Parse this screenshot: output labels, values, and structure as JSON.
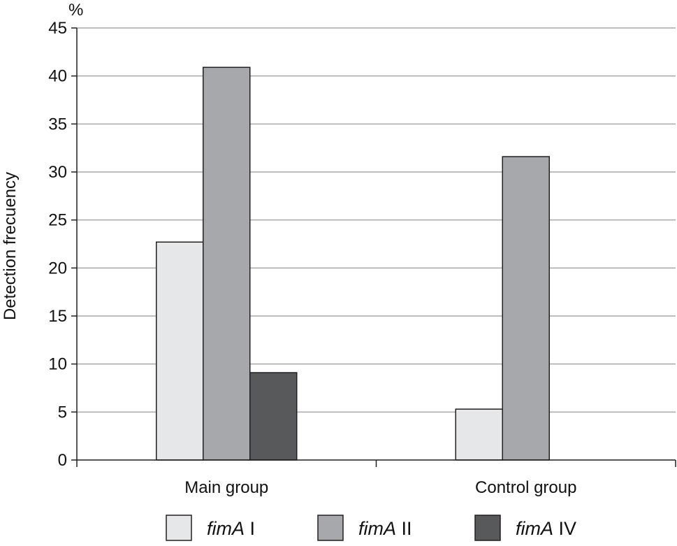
{
  "chart_data": {
    "type": "bar",
    "categories": [
      "Main group",
      "Control group"
    ],
    "series": [
      {
        "name": "fimA I",
        "name_italic": "fimA",
        "name_suffix": "I",
        "color": "#e6e7e9",
        "values": [
          22.7,
          5.3
        ]
      },
      {
        "name": "fimA II",
        "name_italic": "fimA",
        "name_suffix": "II",
        "color": "#a7a8ac",
        "values": [
          40.9,
          31.6
        ]
      },
      {
        "name": "fimA IV",
        "name_italic": "fimA",
        "name_suffix": "IV",
        "color": "#58595b",
        "values": [
          9.1,
          0
        ]
      }
    ],
    "ylabel": "Detection frecuency",
    "y_unit": "%",
    "ylim": [
      0,
      45
    ],
    "yticks": [
      0,
      5,
      10,
      15,
      20,
      25,
      30,
      35,
      40,
      45
    ],
    "grid": true,
    "legend_position": "bottom",
    "colors": {
      "grid": "#a7a8ac",
      "axis": "#231f20",
      "bar_outline": "#231f20"
    }
  }
}
